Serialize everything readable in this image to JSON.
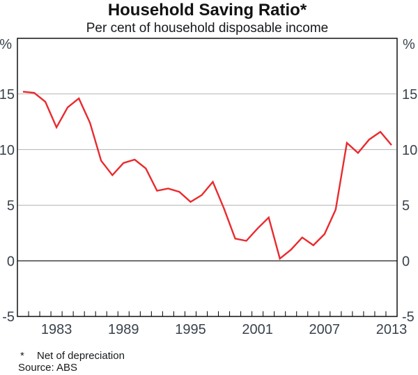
{
  "title": "Household Saving Ratio*",
  "subtitle": "Per cent of household disposable income",
  "footnote": {
    "marker": "*",
    "text": "Net of depreciation",
    "source": "Source: ABS"
  },
  "chart_data": {
    "type": "line",
    "title": "Household Saving Ratio*",
    "subtitle": "Per cent of household disposable income",
    "unit_label": "%",
    "x": [
      1980,
      1981,
      1982,
      1983,
      1984,
      1985,
      1986,
      1987,
      1988,
      1989,
      1990,
      1991,
      1992,
      1993,
      1994,
      1995,
      1996,
      1997,
      1998,
      1999,
      2000,
      2001,
      2002,
      2003,
      2004,
      2005,
      2006,
      2007,
      2008,
      2009,
      2010,
      2011,
      2012,
      2013
    ],
    "series": [
      {
        "name": "Household saving ratio (net of depreciation)",
        "values": [
          15.2,
          15.1,
          14.3,
          12.0,
          13.8,
          14.6,
          12.4,
          9.0,
          7.7,
          8.8,
          9.1,
          8.3,
          6.3,
          6.5,
          6.2,
          5.3,
          5.9,
          7.1,
          4.7,
          2.0,
          1.8,
          2.9,
          3.9,
          0.2,
          1.0,
          2.1,
          1.4,
          2.4,
          4.6,
          10.6,
          9.7,
          10.9,
          11.6,
          10.4
        ]
      }
    ],
    "ylim": [
      -5,
      20
    ],
    "y_ticks_labeled": [
      -5,
      0,
      5,
      10,
      15
    ],
    "gridlines": [
      5,
      10,
      15
    ],
    "zero_line": true,
    "x_tick_labels": [
      1983,
      1989,
      1995,
      2001,
      2007,
      2013
    ],
    "x_minor_tick_interval": 1,
    "legend_position": "none",
    "grid_on": true,
    "line_color": "#e92a2e",
    "grid_color": "#b3b3b3",
    "axis_color": "#000000",
    "label_color": "#39424c"
  }
}
